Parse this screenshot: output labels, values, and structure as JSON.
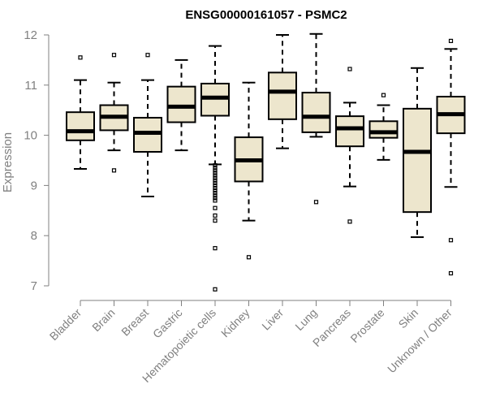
{
  "chart_data": {
    "type": "boxplot",
    "title": "ENSG00000161057 - PSMC2",
    "xlabel": "",
    "ylabel": "Expression",
    "ylim": [
      7,
      12
    ],
    "yticks": [
      7,
      8,
      9,
      10,
      11,
      12
    ],
    "categories": [
      "Bladder",
      "Brain",
      "Breast",
      "Gastric",
      "Hematopoietic cells",
      "Kidney",
      "Liver",
      "Lung",
      "Pancreas",
      "Prostate",
      "Skin",
      "Unknown / Other"
    ],
    "boxes": [
      {
        "name": "Bladder",
        "whisker_low": 9.33,
        "q1": 9.9,
        "median": 10.08,
        "q3": 10.46,
        "whisker_high": 11.1,
        "outliers": [
          11.55
        ]
      },
      {
        "name": "Brain",
        "whisker_low": 9.7,
        "q1": 10.1,
        "median": 10.37,
        "q3": 10.6,
        "whisker_high": 11.05,
        "outliers": [
          11.6,
          9.3
        ]
      },
      {
        "name": "Breast",
        "whisker_low": 8.78,
        "q1": 9.67,
        "median": 10.05,
        "q3": 10.35,
        "whisker_high": 11.1,
        "outliers": [
          11.6
        ]
      },
      {
        "name": "Gastric",
        "whisker_low": 9.7,
        "q1": 10.26,
        "median": 10.57,
        "q3": 10.97,
        "whisker_high": 11.5,
        "outliers": []
      },
      {
        "name": "Hematopoietic cells",
        "whisker_low": 9.42,
        "q1": 10.39,
        "median": 10.75,
        "q3": 11.03,
        "whisker_high": 11.78,
        "outliers": [
          9.4,
          9.35,
          9.3,
          9.25,
          9.2,
          9.15,
          9.1,
          9.05,
          9.0,
          8.95,
          8.9,
          8.85,
          8.8,
          8.75,
          8.7,
          8.55,
          8.4,
          8.3,
          7.75,
          6.93
        ]
      },
      {
        "name": "Kidney",
        "whisker_low": 8.3,
        "q1": 9.08,
        "median": 9.5,
        "q3": 9.96,
        "whisker_high": 11.05,
        "outliers": [
          7.57
        ]
      },
      {
        "name": "Liver",
        "whisker_low": 9.74,
        "q1": 10.32,
        "median": 10.87,
        "q3": 11.25,
        "whisker_high": 12.0,
        "outliers": []
      },
      {
        "name": "Lung",
        "whisker_low": 9.97,
        "q1": 10.06,
        "median": 10.37,
        "q3": 10.85,
        "whisker_high": 12.02,
        "outliers": [
          8.67
        ]
      },
      {
        "name": "Pancreas",
        "whisker_low": 8.98,
        "q1": 9.78,
        "median": 10.14,
        "q3": 10.38,
        "whisker_high": 10.65,
        "outliers": [
          11.32,
          8.28
        ]
      },
      {
        "name": "Prostate",
        "whisker_low": 9.51,
        "q1": 9.95,
        "median": 10.06,
        "q3": 10.28,
        "whisker_high": 10.6,
        "outliers": [
          10.8
        ]
      },
      {
        "name": "Skin",
        "whisker_low": 7.97,
        "q1": 8.47,
        "median": 9.67,
        "q3": 10.53,
        "whisker_high": 11.34,
        "outliers": []
      },
      {
        "name": "Unknown / Other",
        "whisker_low": 8.97,
        "q1": 10.04,
        "median": 10.42,
        "q3": 10.77,
        "whisker_high": 11.72,
        "outliers": [
          11.88,
          7.91,
          7.25
        ]
      }
    ]
  }
}
